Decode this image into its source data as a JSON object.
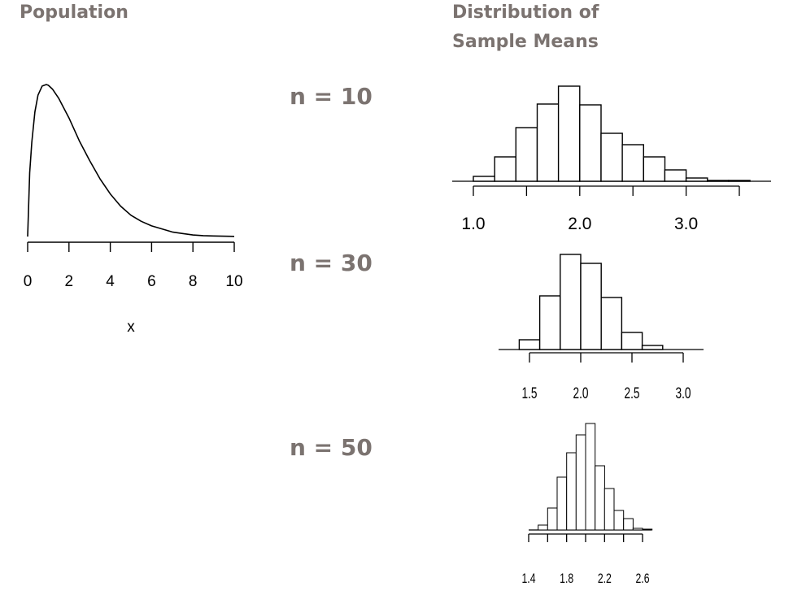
{
  "headings": {
    "population": "Population",
    "sample_means_line1": "Distribution of",
    "sample_means_line2": "Sample Means"
  },
  "sample_labels": [
    "n = 10",
    "n = 30",
    "n = 50"
  ],
  "colors": {
    "heading": "#7b7370",
    "ink": "#000000"
  },
  "chart_data": [
    {
      "id": "population",
      "type": "line",
      "title": "Population",
      "xlabel": "x",
      "ylabel": "",
      "xlim": [
        0,
        10
      ],
      "xticks": [
        "0",
        "2",
        "4",
        "6",
        "8",
        "10"
      ],
      "x": [
        0,
        0.1,
        0.2,
        0.35,
        0.5,
        0.7,
        0.9,
        1.0,
        1.2,
        1.5,
        2.0,
        2.5,
        3.0,
        3.5,
        4.0,
        4.5,
        5.0,
        5.5,
        6.0,
        6.5,
        7.0,
        7.5,
        8.0,
        8.5,
        9.0,
        9.5,
        10.0
      ],
      "y": [
        0,
        0.42,
        0.62,
        0.82,
        0.93,
        0.99,
        1.0,
        0.995,
        0.97,
        0.91,
        0.78,
        0.63,
        0.5,
        0.38,
        0.28,
        0.2,
        0.14,
        0.1,
        0.07,
        0.05,
        0.03,
        0.02,
        0.01,
        0.006,
        0.004,
        0.002,
        0.001
      ]
    },
    {
      "id": "means-n10",
      "type": "bar",
      "title": "n = 10",
      "xlim": [
        1.0,
        3.5
      ],
      "xticks": [
        "1.0",
        "2.0",
        "3.0"
      ],
      "bin_edges": [
        1.0,
        1.2,
        1.4,
        1.6,
        1.8,
        2.0,
        2.2,
        2.4,
        2.6,
        2.8,
        3.0,
        3.2,
        3.4,
        3.6
      ],
      "counts": [
        6,
        30,
        66,
        95,
        117,
        94,
        59,
        45,
        30,
        14,
        4,
        1,
        1
      ]
    },
    {
      "id": "means-n30",
      "type": "bar",
      "title": "n = 30",
      "xlim": [
        1.5,
        3.0
      ],
      "xticks": [
        "1.5",
        "2.0",
        "2.5",
        "3.0"
      ],
      "bin_edges": [
        1.4,
        1.6,
        1.8,
        2.0,
        2.2,
        2.4,
        2.6,
        2.8
      ],
      "counts": [
        12,
        66,
        117,
        106,
        64,
        21,
        5
      ]
    },
    {
      "id": "means-n50",
      "type": "bar",
      "title": "n = 50",
      "xlim": [
        1.4,
        2.6
      ],
      "xticks": [
        "1.4",
        "1.8",
        "2.2",
        "2.6"
      ],
      "bin_edges": [
        1.5,
        1.6,
        1.7,
        1.8,
        1.9,
        2.0,
        2.1,
        2.2,
        2.3,
        2.4,
        2.5,
        2.6,
        2.7
      ],
      "counts": [
        6,
        27,
        65,
        95,
        117,
        131,
        79,
        51,
        24,
        14,
        2,
        1
      ]
    }
  ]
}
